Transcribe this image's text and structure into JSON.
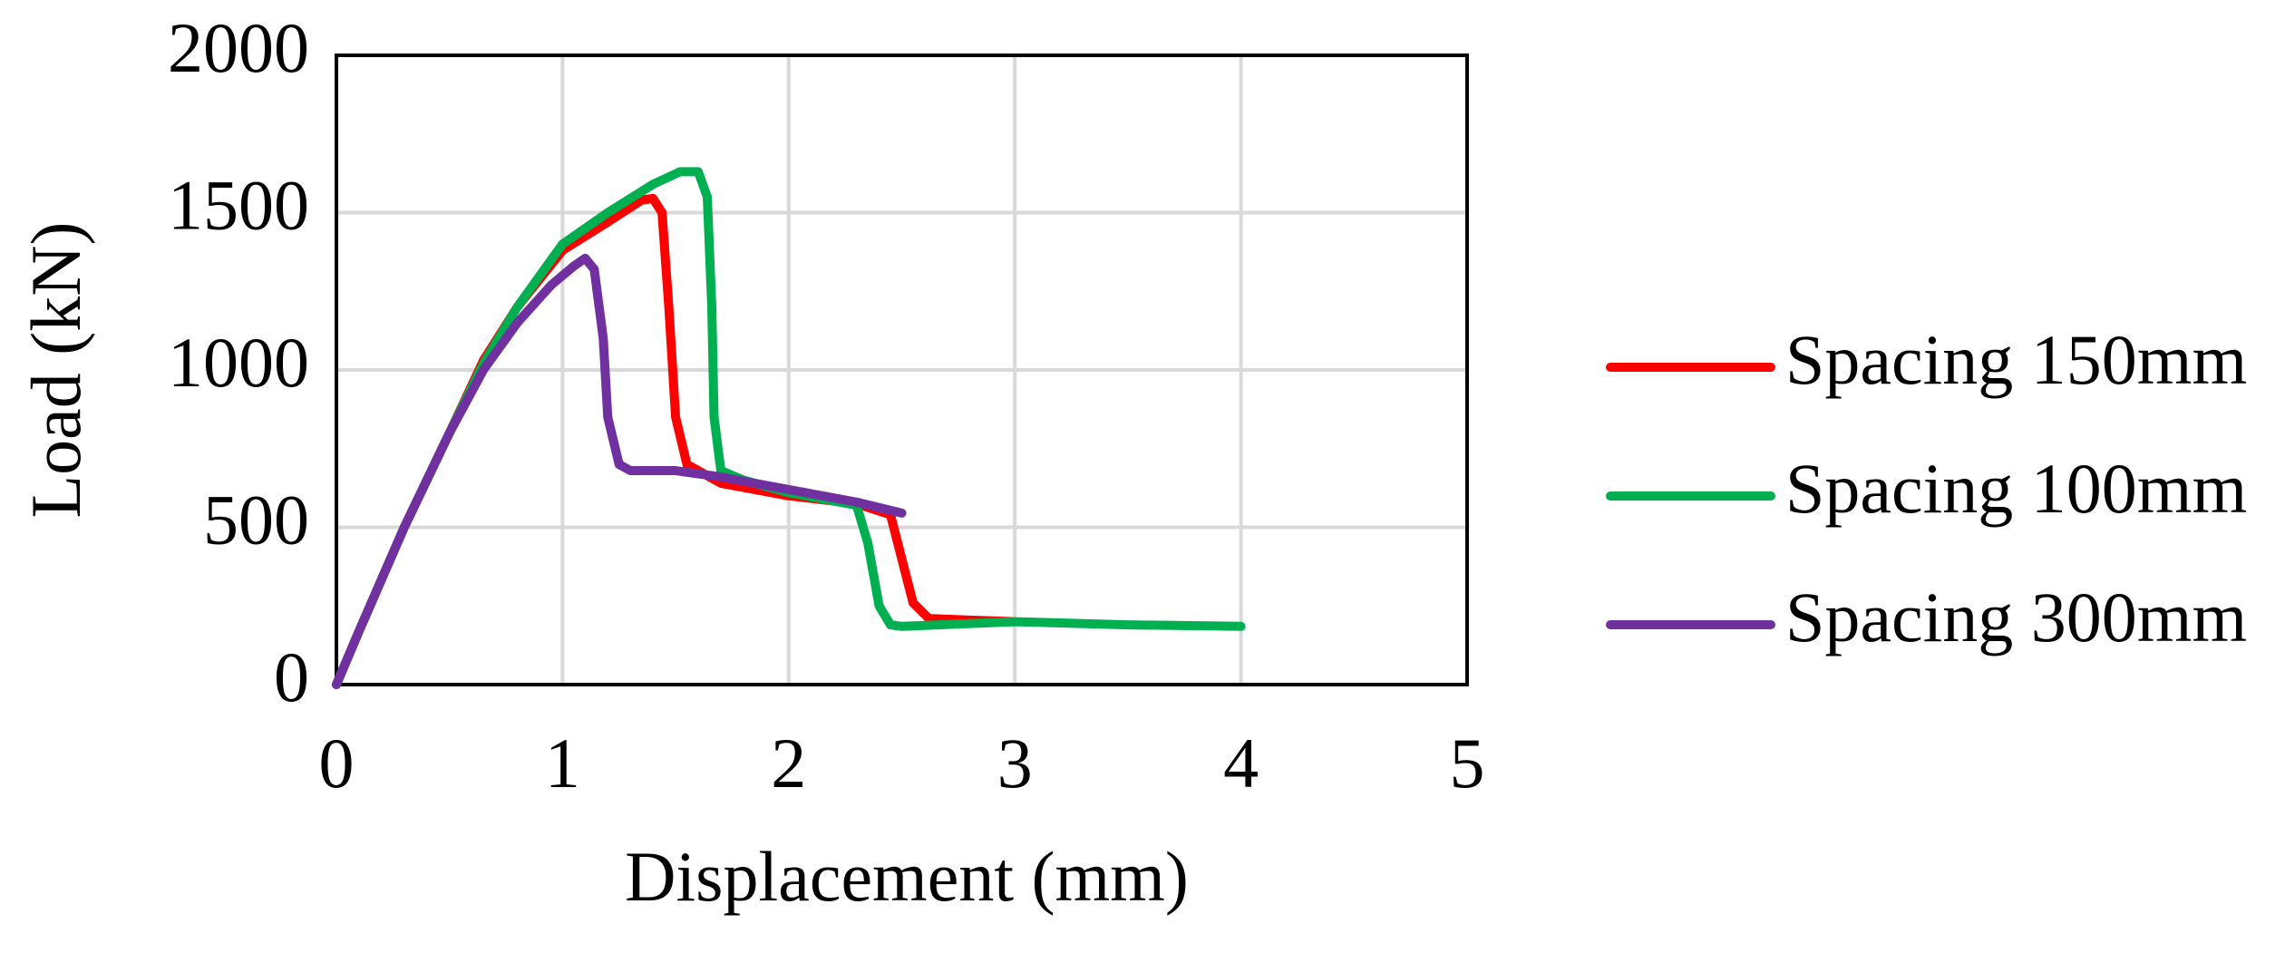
{
  "chart_data": {
    "type": "line",
    "xlabel": "Displacement (mm)",
    "ylabel": "Load (kN)",
    "xlim": [
      0,
      5
    ],
    "xticks": [
      0,
      1,
      2,
      3,
      4,
      5
    ],
    "ylim": [
      0,
      2000
    ],
    "yticks": [
      0,
      500,
      1000,
      1500,
      2000
    ],
    "grid": true,
    "legend": "right",
    "series": [
      {
        "name": "Spacing 150mm",
        "color": "#ff0000",
        "x": [
          0,
          0.1,
          0.3,
          0.5,
          0.65,
          0.8,
          1.0,
          1.2,
          1.35,
          1.4,
          1.44,
          1.47,
          1.5,
          1.55,
          1.7,
          2.0,
          2.3,
          2.45,
          2.5,
          2.55,
          2.62,
          2.8,
          3.0
        ],
        "values": [
          0,
          170,
          500,
          800,
          1030,
          1200,
          1380,
          1470,
          1540,
          1545,
          1500,
          1200,
          850,
          700,
          640,
          600,
          575,
          540,
          400,
          260,
          210,
          205,
          200
        ]
      },
      {
        "name": "Spacing 100mm",
        "color": "#00b050",
        "x": [
          0,
          0.1,
          0.3,
          0.5,
          0.65,
          0.8,
          1.0,
          1.2,
          1.4,
          1.52,
          1.6,
          1.64,
          1.66,
          1.67,
          1.7,
          1.8,
          2.0,
          2.3,
          2.35,
          2.4,
          2.45,
          2.5,
          3.0,
          3.5,
          4.0
        ],
        "values": [
          0,
          170,
          500,
          800,
          1020,
          1200,
          1400,
          1500,
          1590,
          1630,
          1630,
          1550,
          1200,
          850,
          680,
          650,
          610,
          570,
          450,
          250,
          190,
          185,
          200,
          190,
          185
        ]
      },
      {
        "name": "Spacing 300mm",
        "color": "#7030a0",
        "x": [
          0,
          0.1,
          0.3,
          0.5,
          0.65,
          0.8,
          0.95,
          1.05,
          1.1,
          1.14,
          1.18,
          1.2,
          1.25,
          1.3,
          1.5,
          1.7,
          2.0,
          2.3,
          2.5
        ],
        "values": [
          0,
          170,
          500,
          800,
          1000,
          1150,
          1270,
          1330,
          1355,
          1320,
          1100,
          850,
          700,
          680,
          680,
          660,
          620,
          580,
          545
        ]
      }
    ]
  }
}
